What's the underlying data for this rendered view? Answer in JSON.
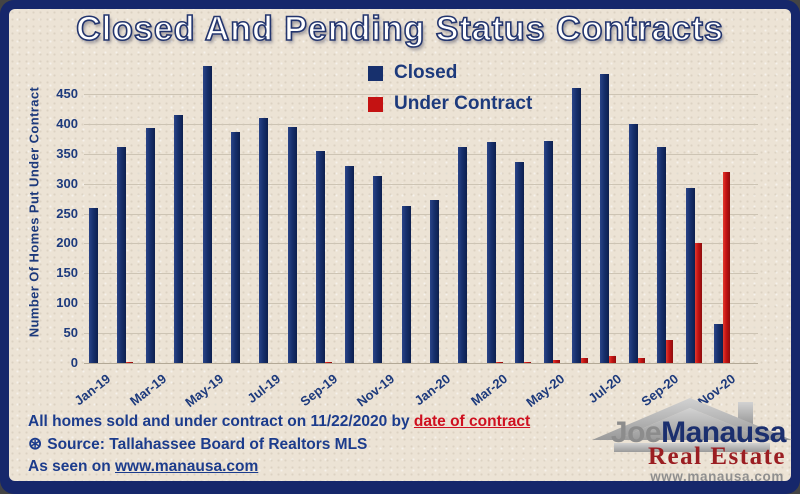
{
  "title": "Closed And Pending Status Contracts",
  "colors": {
    "frame": "#16276b",
    "background": "#ece3d5",
    "closed_bar": "#17306d",
    "under_contract_bar": "#c41212",
    "axis_text": "#1d3a7c",
    "gridline": "#cdc4b4"
  },
  "legend": {
    "items": [
      {
        "label": "Closed",
        "color": "#17306d"
      },
      {
        "label": "Under Contract",
        "color": "#c41212"
      }
    ]
  },
  "chart_data": {
    "type": "bar",
    "title": "Closed And Pending Status Contracts",
    "xlabel": "",
    "ylabel": "Number Of Homes Put Under Contract",
    "ylim": [
      0,
      450
    ],
    "ytick_step": 50,
    "grid": true,
    "legend_position": "top-center",
    "categories": [
      "Jan-19",
      "Feb-19",
      "Mar-19",
      "Apr-19",
      "May-19",
      "Jun-19",
      "Jul-19",
      "Aug-19",
      "Sep-19",
      "Oct-19",
      "Nov-19",
      "Dec-19",
      "Jan-20",
      "Feb-20",
      "Mar-20",
      "Apr-20",
      "May-20",
      "Jun-20",
      "Jul-20",
      "Aug-20",
      "Sep-20",
      "Oct-20",
      "Nov-20"
    ],
    "xtick_labels": [
      "Jan-19",
      "Mar-19",
      "May-19",
      "Jul-19",
      "Sep-19",
      "Nov-19",
      "Jan-20",
      "Mar-20",
      "May-20",
      "Jul-20",
      "Sep-20",
      "Nov-20"
    ],
    "series": [
      {
        "name": "Closed",
        "color": "#17306d",
        "values": [
          260,
          362,
          393,
          415,
          497,
          386,
          410,
          395,
          355,
          330,
          312,
          262,
          272,
          362,
          370,
          336,
          371,
          460,
          483,
          400,
          362,
          292,
          65
        ]
      },
      {
        "name": "Under Contract",
        "color": "#c41212",
        "values": [
          0,
          2,
          0,
          0,
          0,
          0,
          0,
          0,
          2,
          0,
          0,
          0,
          0,
          0,
          2,
          2,
          5,
          8,
          12,
          9,
          38,
          200,
          320
        ]
      }
    ]
  },
  "footer": {
    "line1_prefix": "All homes sold and under contract on 11/22/2020 by ",
    "line1_link": "date of contract",
    "source_icon": "⊛",
    "line2": "Source: Tallahassee Board of Realtors MLS",
    "line3_prefix": "As seen on ",
    "line3_link": "www.manausa.com"
  },
  "logo": {
    "first_name": "Joe",
    "last_name": "Manausa",
    "tagline": "Real Estate",
    "url": "www.manausa.com"
  }
}
